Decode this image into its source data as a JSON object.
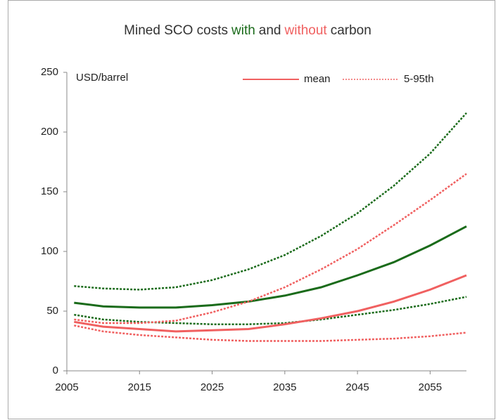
{
  "chart_data": {
    "type": "line",
    "title": [
      {
        "text": "Mined SCO costs",
        "color": "#333333"
      },
      {
        "text": "with",
        "color": "#1a6b1a"
      },
      {
        "text": "and",
        "color": "#333333"
      },
      {
        "text": "without",
        "color": "#f06060"
      },
      {
        "text": "carbon",
        "color": "#333333"
      }
    ],
    "y_label": "USD/barrel",
    "x": [
      2006,
      2010,
      2015,
      2020,
      2025,
      2030,
      2035,
      2040,
      2045,
      2050,
      2055,
      2060
    ],
    "series": [
      {
        "color": "#1a6b1a",
        "style": "solid",
        "values": [
          57,
          54,
          53,
          53,
          55,
          58,
          63,
          70,
          80,
          91,
          105,
          121
        ]
      },
      {
        "color": "#1a6b1a",
        "style": "dotted",
        "values": [
          71,
          69,
          68,
          70,
          76,
          85,
          97,
          113,
          132,
          155,
          182,
          216
        ]
      },
      {
        "color": "#1a6b1a",
        "style": "dotted",
        "values": [
          47,
          43,
          41,
          40,
          39,
          39,
          40,
          43,
          47,
          51,
          56,
          62
        ]
      },
      {
        "color": "#f06060",
        "style": "solid",
        "values": [
          41,
          37,
          35,
          33,
          34,
          35,
          39,
          44,
          50,
          58,
          68,
          80
        ]
      },
      {
        "color": "#f06060",
        "style": "dotted",
        "values": [
          43,
          40,
          40,
          42,
          49,
          58,
          70,
          85,
          102,
          122,
          143,
          165
        ]
      },
      {
        "color": "#f06060",
        "style": "dotted",
        "values": [
          38,
          33,
          30,
          28,
          26,
          25,
          25,
          25,
          26,
          27,
          29,
          32
        ]
      }
    ],
    "legend": [
      {
        "label": "mean",
        "color": "#f06060",
        "style": "solid"
      },
      {
        "label": "5-95th",
        "color": "#f06060",
        "style": "dotted"
      }
    ],
    "xlim": [
      2005,
      2060
    ],
    "xticks": [
      2005,
      2015,
      2025,
      2035,
      2045,
      2055
    ],
    "ylim": [
      0,
      250
    ],
    "yticks": [
      0,
      50,
      100,
      150,
      200,
      250
    ]
  }
}
